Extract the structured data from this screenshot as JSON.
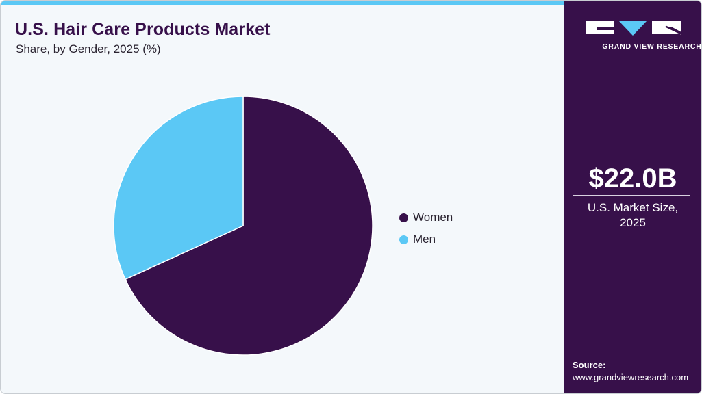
{
  "header": {
    "title": "U.S. Hair Care Products Market",
    "subtitle": "Share, by Gender, 2025 (%)"
  },
  "colors": {
    "accent": "#5bc8f5",
    "brand": "#37104a",
    "background": "#f4f8fb"
  },
  "legend": {
    "items": [
      {
        "label": "Women",
        "color": "#37104a"
      },
      {
        "label": "Men",
        "color": "#5bc8f5"
      }
    ]
  },
  "sidebar": {
    "logo_text": "GRAND VIEW RESEARCH",
    "market_value": "$22.0B",
    "market_label_line1": "U.S. Market Size,",
    "market_label_line2": "2025",
    "source_label": "Source:",
    "source_url": "www.grandviewresearch.com"
  },
  "chart_data": {
    "type": "pie",
    "title": "U.S. Hair Care Products Market",
    "subtitle": "Share, by Gender, 2025 (%)",
    "categories": [
      "Women",
      "Men"
    ],
    "values": [
      68.2,
      31.8
    ],
    "colors": [
      "#37104a",
      "#5bc8f5"
    ],
    "start_angle_deg": 0,
    "direction": "clockwise",
    "legend_position": "right",
    "labels_on_slices": false
  }
}
